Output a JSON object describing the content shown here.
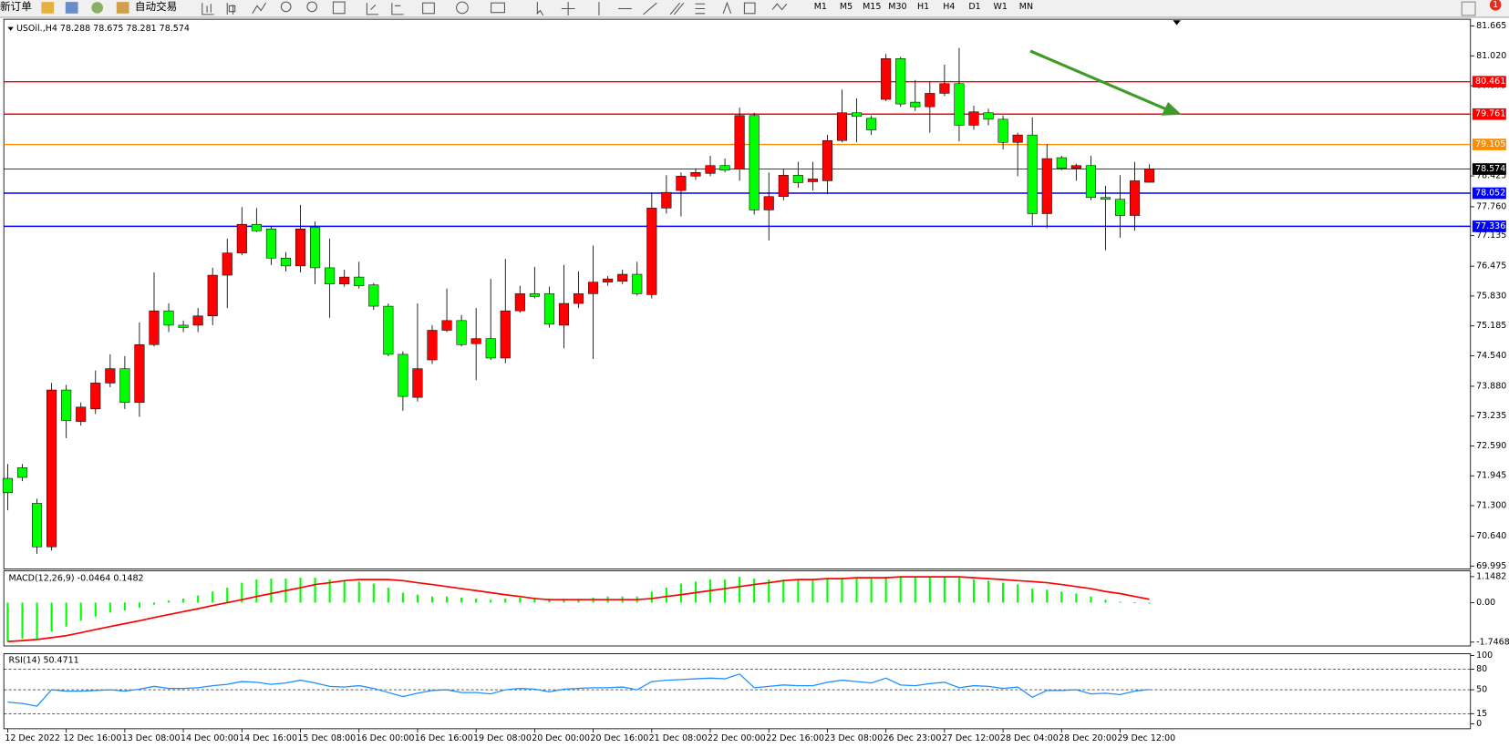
{
  "toolbar": {
    "new_order": "新订单",
    "auto_trading": "自动交易",
    "timeframes": [
      "M1",
      "M5",
      "M15",
      "M30",
      "H1",
      "H4",
      "D1",
      "W1",
      "MN"
    ],
    "notification": "1"
  },
  "chart_data": [
    {
      "type": "candlestick",
      "title": "USOil.,H4 78.288 78.675 78.281 78.574",
      "categories": [
        "12 Dec 2022",
        null,
        null,
        null,
        "12 Dec 16:00",
        null,
        null,
        null,
        "13 Dec 08:00",
        null,
        null,
        null,
        "14 Dec 00:00",
        null,
        null,
        null,
        "14 Dec 16:00",
        null,
        null,
        null,
        "15 Dec 08:00",
        null,
        null,
        null,
        "16 Dec 00:00",
        null,
        null,
        null,
        "16 Dec 16:00",
        null,
        null,
        null,
        "19 Dec 08:00",
        null,
        null,
        null,
        "20 Dec 00:00",
        null,
        null,
        null,
        "20 Dec 16:00",
        null,
        null,
        null,
        "21 Dec 08:00",
        null,
        null,
        null,
        "22 Dec 00:00",
        null,
        null,
        null,
        "22 Dec 16:00",
        null,
        null,
        null,
        "23 Dec 08:00",
        null,
        null,
        null,
        "26 Dec 23:00",
        null,
        null,
        null,
        "27 Dec 12:00",
        null,
        null,
        null,
        "28 Dec 04:00",
        null,
        null,
        null,
        "28 Dec 20:00",
        null,
        null,
        null,
        "29 Dec 12:00",
        null,
        null
      ],
      "open": [
        71.89,
        72.12,
        71.35,
        70.41,
        73.8,
        73.12,
        73.39,
        73.95,
        74.26,
        73.53,
        74.78,
        75.51,
        75.2,
        75.2,
        75.4,
        76.28,
        76.76,
        77.38,
        77.28,
        76.65,
        76.48,
        77.32,
        76.44,
        76.09,
        76.24,
        76.07,
        75.61,
        74.57,
        73.64,
        74.45,
        75.09,
        75.3,
        74.8,
        74.91,
        74.49,
        75.51,
        75.88,
        75.88,
        75.2,
        75.67,
        75.88,
        76.13,
        76.15,
        76.3,
        75.86,
        77.73,
        78.11,
        78.42,
        78.48,
        78.65,
        78.57,
        79.73,
        77.69,
        77.98,
        78.44,
        78.3,
        78.32,
        79.19,
        79.79,
        79.67,
        80.08,
        80.96,
        80.02,
        79.92,
        80.21,
        80.42,
        79.52,
        79.79,
        79.65,
        79.15,
        79.31,
        77.61,
        78.82,
        78.59,
        78.65,
        77.96,
        77.92,
        77.57,
        78.288
      ],
      "high": [
        72.2,
        72.2,
        71.45,
        73.95,
        73.91,
        73.53,
        74.22,
        74.57,
        74.53,
        75.26,
        76.34,
        75.67,
        75.3,
        75.57,
        76.44,
        77.07,
        77.75,
        77.73,
        77.34,
        76.78,
        77.8,
        77.44,
        77.07,
        76.4,
        76.57,
        76.11,
        75.67,
        74.63,
        75.67,
        75.2,
        75.99,
        75.42,
        75.57,
        76.2,
        76.63,
        76.05,
        76.46,
        76.03,
        76.5,
        76.36,
        76.92,
        76.26,
        76.4,
        76.57,
        78.07,
        78.44,
        78.5,
        78.59,
        78.86,
        78.8,
        79.9,
        79.79,
        78.5,
        78.57,
        78.73,
        78.73,
        79.31,
        80.29,
        80.1,
        79.73,
        81.06,
        81.0,
        80.5,
        80.46,
        80.83,
        81.19,
        79.94,
        79.88,
        79.73,
        79.36,
        79.69,
        79.11,
        78.86,
        78.69,
        78.86,
        78.21,
        78.44,
        78.73,
        78.675
      ],
      "low": [
        71.2,
        71.83,
        70.26,
        70.33,
        72.76,
        73.03,
        73.28,
        73.86,
        73.39,
        73.22,
        74.74,
        75.05,
        75.05,
        75.05,
        75.2,
        75.57,
        76.71,
        77.21,
        76.5,
        76.36,
        76.34,
        76.09,
        75.36,
        76.03,
        75.99,
        75.53,
        74.53,
        73.35,
        73.55,
        74.36,
        75.05,
        74.74,
        74.01,
        74.45,
        74.38,
        75.47,
        75.78,
        75.15,
        74.7,
        75.57,
        74.47,
        76.05,
        76.09,
        75.84,
        75.78,
        77.61,
        77.55,
        78.34,
        78.42,
        78.5,
        78.32,
        77.59,
        77.03,
        77.9,
        78.17,
        78.11,
        78.03,
        79.15,
        79.15,
        79.31,
        80.04,
        79.92,
        79.83,
        79.36,
        80.15,
        79.17,
        79.42,
        79.52,
        79.0,
        78.42,
        77.36,
        77.3,
        78.55,
        78.32,
        77.9,
        76.82,
        77.09,
        77.24,
        78.281
      ],
      "close": [
        71.58,
        71.91,
        70.41,
        73.8,
        73.14,
        73.43,
        73.95,
        74.26,
        73.53,
        74.78,
        75.51,
        75.2,
        75.15,
        75.4,
        76.28,
        76.76,
        77.38,
        77.24,
        76.65,
        76.48,
        77.28,
        76.44,
        76.09,
        76.24,
        76.05,
        75.61,
        74.57,
        73.66,
        74.26,
        75.09,
        75.3,
        74.78,
        74.91,
        74.49,
        75.51,
        75.88,
        75.82,
        75.22,
        75.67,
        75.88,
        76.13,
        76.2,
        76.3,
        75.88,
        77.73,
        78.07,
        78.42,
        78.5,
        78.65,
        78.55,
        79.73,
        77.69,
        77.98,
        78.44,
        78.28,
        78.36,
        79.19,
        79.79,
        79.71,
        79.42,
        80.96,
        79.98,
        79.92,
        80.21,
        80.42,
        79.52,
        79.81,
        79.65,
        79.15,
        79.31,
        77.61,
        78.8,
        78.59,
        78.65,
        77.96,
        77.92,
        77.57,
        78.32,
        78.574
      ],
      "up_color": "#ff0000",
      "down_color": "#00ff00",
      "ylim": [
        69.995,
        81.665
      ],
      "yticks": [
        {
          "value": 81.665,
          "label": "81.665"
        },
        {
          "value": 81.02,
          "label": "81.020"
        },
        {
          "value": 80.375,
          "label": "80.375"
        },
        {
          "value": 78.425,
          "label": "78.425"
        },
        {
          "value": 77.76,
          "label": "77.760"
        },
        {
          "value": 77.135,
          "label": "77.135"
        },
        {
          "value": 76.475,
          "label": "76.475"
        },
        {
          "value": 75.83,
          "label": "75.830"
        },
        {
          "value": 75.185,
          "label": "75.185"
        },
        {
          "value": 74.54,
          "label": "74.540"
        },
        {
          "value": 73.88,
          "label": "73.880"
        },
        {
          "value": 73.235,
          "label": "73.235"
        },
        {
          "value": 72.59,
          "label": "72.590"
        },
        {
          "value": 71.945,
          "label": "71.945"
        },
        {
          "value": 71.3,
          "label": "71.300"
        },
        {
          "value": 70.64,
          "label": "70.640"
        },
        {
          "value": 69.995,
          "label": "69.995"
        }
      ],
      "price_lines": [
        {
          "value": 80.461,
          "color": "#ff0000"
        },
        {
          "value": 79.761,
          "color": "#ff0000"
        },
        {
          "value": 79.105,
          "color": "#ff8c00"
        },
        {
          "value": 78.574,
          "color": "#000000"
        },
        {
          "value": 78.052,
          "color": "#0000ff"
        },
        {
          "value": 77.336,
          "color": "#0000ff"
        }
      ]
    },
    {
      "type": "macd",
      "title": "MACD(12,26,9) -0.0464 0.1482",
      "values": [
        -1.72,
        -1.59,
        -1.59,
        -1.28,
        -1.06,
        -0.8,
        -0.62,
        -0.44,
        -0.35,
        -0.22,
        -0.09,
        0.09,
        0.18,
        0.31,
        0.49,
        0.66,
        0.88,
        1.02,
        1.06,
        1.06,
        1.1,
        1.1,
        1.02,
        0.97,
        0.93,
        0.84,
        0.66,
        0.44,
        0.35,
        0.27,
        0.27,
        0.22,
        0.18,
        0.13,
        0.18,
        0.22,
        0.22,
        0.18,
        0.18,
        0.18,
        0.22,
        0.27,
        0.27,
        0.27,
        0.49,
        0.66,
        0.84,
        0.93,
        1.02,
        1.02,
        1.14,
        1.06,
        1.02,
        1.02,
        1.02,
        1.02,
        1.06,
        1.1,
        1.1,
        1.06,
        1.14,
        1.14,
        1.12,
        1.12,
        1.12,
        1.1,
        1.02,
        0.97,
        0.88,
        0.8,
        0.62,
        0.57,
        0.49,
        0.4,
        0.27,
        0.13,
        0.04,
        0.02,
        -0.0464
      ],
      "color": "#00ff00",
      "signal": [
        -1.72,
        -1.68,
        -1.63,
        -1.55,
        -1.46,
        -1.33,
        -1.19,
        -1.06,
        -0.93,
        -0.8,
        -0.66,
        -0.53,
        -0.4,
        -0.27,
        -0.13,
        0,
        0.13,
        0.27,
        0.4,
        0.53,
        0.66,
        0.8,
        0.88,
        0.97,
        1.02,
        1.02,
        1.02,
        0.97,
        0.88,
        0.8,
        0.71,
        0.62,
        0.53,
        0.44,
        0.35,
        0.27,
        0.18,
        0.13,
        0.13,
        0.13,
        0.13,
        0.13,
        0.13,
        0.13,
        0.18,
        0.27,
        0.35,
        0.44,
        0.53,
        0.62,
        0.71,
        0.8,
        0.88,
        0.97,
        1.02,
        1.02,
        1.06,
        1.06,
        1.1,
        1.1,
        1.1,
        1.14,
        1.14,
        1.14,
        1.14,
        1.14,
        1.1,
        1.06,
        1.02,
        0.97,
        0.93,
        0.88,
        0.8,
        0.71,
        0.62,
        0.49,
        0.4,
        0.27,
        0.1482
      ],
      "signal_color": "#ff0000",
      "ylim": [
        -1.7468,
        1.1482
      ],
      "yticks": [
        1.1482,
        {
          "value": 0,
          "label": "0.00"
        },
        -1.7468
      ]
    },
    {
      "type": "line",
      "title": "RSI(14) 50.4711",
      "values": [
        32,
        30,
        26,
        50,
        48,
        48,
        49,
        50,
        48,
        51,
        55,
        52,
        52,
        53,
        56,
        58,
        62,
        61,
        58,
        60,
        64,
        60,
        55,
        54,
        56,
        52,
        46,
        40,
        45,
        49,
        50,
        46,
        46,
        44,
        50,
        52,
        51,
        47,
        51,
        52,
        53,
        53,
        54,
        50,
        62,
        64,
        65,
        66,
        67,
        66,
        73,
        53,
        55,
        57,
        56,
        56,
        61,
        64,
        62,
        60,
        67,
        57,
        56,
        59,
        61,
        53,
        56,
        55,
        52,
        54,
        39,
        49,
        49,
        50,
        44,
        45,
        43,
        48,
        50.4711
      ],
      "color": "#1e90ff",
      "ylim": [
        0,
        100
      ],
      "yticks": [
        100,
        80,
        50,
        15,
        0
      ],
      "levels": [
        80,
        50,
        15
      ]
    }
  ]
}
